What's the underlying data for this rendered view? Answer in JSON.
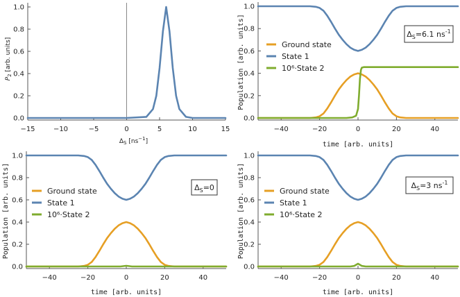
{
  "colors": {
    "ground": "#e69f24",
    "state1": "#5b84b1",
    "state2": "#7fac2e",
    "axis": "#555555",
    "zero_line": "#888888"
  },
  "chart_data": [
    {
      "id": "p2-vs-detuning",
      "type": "line",
      "xlabel": "ΔS [ns⁻¹]",
      "xlabel_parts": {
        "symbol": "Δ",
        "sub": "S",
        "unit_pre": " [ns",
        "sup": "−1",
        "unit_post": "]"
      },
      "ylabel": "P2 [arb. units]",
      "ylabel_parts": {
        "symbol": "P",
        "sub": "2",
        "unit": " [arb. units]"
      },
      "xlim": [
        -15,
        15
      ],
      "ylim": [
        0,
        1.0
      ],
      "xticks": [
        -15,
        -10,
        -5,
        0,
        5,
        10,
        15
      ],
      "xtick_labels": [
        "−15",
        "−10",
        "−5",
        "0",
        "5",
        "10",
        "15"
      ],
      "yticks": [
        0,
        0.2,
        0.4,
        0.6,
        0.8,
        1.0
      ],
      "ytick_labels": [
        "0.0",
        "0.2",
        "0.4",
        "0.6",
        "0.8",
        "1.0"
      ],
      "series": [
        {
          "name": "P2",
          "color_key": "state1",
          "x": [
            -15,
            -10,
            -5,
            0,
            3,
            4,
            4.5,
            5,
            5.5,
            6,
            6.5,
            7,
            7.5,
            8,
            9,
            10,
            15
          ],
          "y": [
            0,
            0,
            0,
            0,
            0.01,
            0.08,
            0.2,
            0.45,
            0.78,
            1.0,
            0.78,
            0.45,
            0.2,
            0.08,
            0.01,
            0,
            0
          ]
        }
      ]
    },
    {
      "id": "populations-delta-6-1",
      "type": "line",
      "xlabel": "time [arb. units]",
      "ylabel": "Population [arb. units]",
      "xlim": [
        -52,
        52
      ],
      "ylim": [
        0,
        1.0
      ],
      "xticks": [
        -40,
        -20,
        0,
        20,
        40
      ],
      "xtick_labels": [
        "−40",
        "−20",
        "0",
        "20",
        "40"
      ],
      "yticks": [
        0,
        0.2,
        0.4,
        0.6,
        0.8,
        1.0
      ],
      "ytick_labels": [
        "0.0",
        "0.2",
        "0.4",
        "0.6",
        "0.8",
        "1.0"
      ],
      "legend": [
        "Ground state",
        "State 1",
        "10⁶·State 2"
      ],
      "legend_position": "center-left",
      "annotation": {
        "text": "ΔS=6.1 ns⁻¹",
        "symbol": "Δ",
        "sub": "S",
        "main": "=6.1 ns",
        "sup": "-1",
        "position": "top-right"
      },
      "series": [
        {
          "name": "Ground state",
          "color_key": "ground",
          "x": [
            -52,
            -25,
            -22,
            -20,
            -18,
            -16,
            -14,
            -12,
            -10,
            -8,
            -6,
            -4,
            -2,
            0,
            2,
            4,
            6,
            8,
            10,
            12,
            14,
            16,
            18,
            20,
            22,
            25,
            52
          ],
          "y": [
            0,
            0,
            0.005,
            0.015,
            0.04,
            0.085,
            0.14,
            0.2,
            0.255,
            0.3,
            0.34,
            0.37,
            0.39,
            0.4,
            0.39,
            0.37,
            0.34,
            0.3,
            0.255,
            0.2,
            0.14,
            0.085,
            0.04,
            0.015,
            0.005,
            0,
            0
          ]
        },
        {
          "name": "State 1",
          "color_key": "state1",
          "x": [
            -52,
            -25,
            -22,
            -20,
            -18,
            -16,
            -14,
            -12,
            -10,
            -8,
            -6,
            -4,
            -2,
            0,
            2,
            4,
            6,
            8,
            10,
            12,
            14,
            16,
            18,
            20,
            22,
            25,
            52
          ],
          "y": [
            1,
            1,
            0.995,
            0.985,
            0.96,
            0.915,
            0.86,
            0.8,
            0.745,
            0.7,
            0.66,
            0.63,
            0.61,
            0.6,
            0.61,
            0.63,
            0.66,
            0.7,
            0.745,
            0.8,
            0.86,
            0.915,
            0.96,
            0.985,
            0.995,
            1,
            1
          ]
        },
        {
          "name": "10⁶·State 2",
          "color_key": "state2",
          "x": [
            -52,
            -6,
            -3,
            -1,
            0,
            0.5,
            1,
            1.5,
            2,
            3,
            52
          ],
          "y": [
            0,
            0,
            0.005,
            0.02,
            0.08,
            0.2,
            0.35,
            0.43,
            0.45,
            0.455,
            0.455
          ]
        }
      ]
    },
    {
      "id": "populations-delta-0",
      "type": "line",
      "xlabel": "time [arb. units]",
      "ylabel": "Population [arb. units]",
      "xlim": [
        -52,
        52
      ],
      "ylim": [
        0,
        1.0
      ],
      "xticks": [
        -40,
        -20,
        0,
        20,
        40
      ],
      "xtick_labels": [
        "−40",
        "−20",
        "0",
        "20",
        "40"
      ],
      "yticks": [
        0,
        0.2,
        0.4,
        0.6,
        0.8,
        1.0
      ],
      "ytick_labels": [
        "0.0",
        "0.2",
        "0.4",
        "0.6",
        "0.8",
        "1.0"
      ],
      "legend": [
        "Ground state",
        "State 1",
        "10⁶·State 2"
      ],
      "legend_position": "center-left",
      "annotation": {
        "text": "ΔS=0",
        "symbol": "Δ",
        "sub": "S",
        "main": "=0",
        "sup": "",
        "position": "top-right"
      },
      "series": [
        {
          "name": "Ground state",
          "color_key": "ground",
          "x": [
            -52,
            -25,
            -22,
            -20,
            -18,
            -16,
            -14,
            -12,
            -10,
            -8,
            -6,
            -4,
            -2,
            0,
            2,
            4,
            6,
            8,
            10,
            12,
            14,
            16,
            18,
            20,
            22,
            25,
            52
          ],
          "y": [
            0,
            0,
            0.005,
            0.015,
            0.04,
            0.085,
            0.14,
            0.2,
            0.255,
            0.3,
            0.34,
            0.37,
            0.39,
            0.4,
            0.39,
            0.37,
            0.34,
            0.3,
            0.255,
            0.2,
            0.14,
            0.085,
            0.04,
            0.015,
            0.005,
            0,
            0
          ]
        },
        {
          "name": "State 1",
          "color_key": "state1",
          "x": [
            -52,
            -25,
            -22,
            -20,
            -18,
            -16,
            -14,
            -12,
            -10,
            -8,
            -6,
            -4,
            -2,
            0,
            2,
            4,
            6,
            8,
            10,
            12,
            14,
            16,
            18,
            20,
            22,
            25,
            52
          ],
          "y": [
            1,
            1,
            0.995,
            0.985,
            0.96,
            0.915,
            0.86,
            0.8,
            0.745,
            0.7,
            0.66,
            0.63,
            0.61,
            0.6,
            0.61,
            0.63,
            0.66,
            0.7,
            0.745,
            0.8,
            0.86,
            0.915,
            0.96,
            0.985,
            0.995,
            1,
            1
          ]
        },
        {
          "name": "10⁶·State 2",
          "color_key": "state2",
          "x": [
            -52,
            -3,
            -1.5,
            0,
            1.5,
            3,
            52
          ],
          "y": [
            0,
            0,
            0.003,
            0.006,
            0.003,
            0,
            0
          ]
        }
      ]
    },
    {
      "id": "populations-delta-3",
      "type": "line",
      "xlabel": "time [arb. units]",
      "ylabel": "Population [arb. units]",
      "xlim": [
        -52,
        52
      ],
      "ylim": [
        0,
        1.0
      ],
      "xticks": [
        -40,
        -20,
        0,
        20,
        40
      ],
      "xtick_labels": [
        "−40",
        "−20",
        "0",
        "20",
        "40"
      ],
      "yticks": [
        0,
        0.2,
        0.4,
        0.6,
        0.8,
        1.0
      ],
      "ytick_labels": [
        "0.0",
        "0.2",
        "0.4",
        "0.6",
        "0.8",
        "1.0"
      ],
      "legend": [
        "Ground state",
        "State 1",
        "10⁶·State 2"
      ],
      "legend_position": "center-left",
      "annotation": {
        "text": "ΔS=3 ns⁻¹",
        "symbol": "Δ",
        "sub": "S",
        "main": "=3 ns",
        "sup": "-1",
        "position": "top-right"
      },
      "series": [
        {
          "name": "Ground state",
          "color_key": "ground",
          "x": [
            -52,
            -25,
            -22,
            -20,
            -18,
            -16,
            -14,
            -12,
            -10,
            -8,
            -6,
            -4,
            -2,
            0,
            2,
            4,
            6,
            8,
            10,
            12,
            14,
            16,
            18,
            20,
            22,
            25,
            52
          ],
          "y": [
            0,
            0,
            0.005,
            0.015,
            0.04,
            0.085,
            0.14,
            0.2,
            0.255,
            0.3,
            0.34,
            0.37,
            0.39,
            0.4,
            0.39,
            0.37,
            0.34,
            0.3,
            0.255,
            0.2,
            0.14,
            0.085,
            0.04,
            0.015,
            0.005,
            0,
            0
          ]
        },
        {
          "name": "State 1",
          "color_key": "state1",
          "x": [
            -52,
            -25,
            -22,
            -20,
            -18,
            -16,
            -14,
            -12,
            -10,
            -8,
            -6,
            -4,
            -2,
            0,
            2,
            4,
            6,
            8,
            10,
            12,
            14,
            16,
            18,
            20,
            22,
            25,
            52
          ],
          "y": [
            1,
            1,
            0.995,
            0.985,
            0.96,
            0.915,
            0.86,
            0.8,
            0.745,
            0.7,
            0.66,
            0.63,
            0.61,
            0.6,
            0.61,
            0.63,
            0.66,
            0.7,
            0.745,
            0.8,
            0.86,
            0.915,
            0.96,
            0.985,
            0.995,
            1,
            1
          ]
        },
        {
          "name": "10⁶·State 2",
          "color_key": "state2",
          "x": [
            -52,
            -4,
            -2,
            -1,
            0,
            1,
            2,
            4,
            52
          ],
          "y": [
            0,
            0,
            0.005,
            0.015,
            0.025,
            0.015,
            0.005,
            0,
            0
          ]
        }
      ]
    }
  ]
}
